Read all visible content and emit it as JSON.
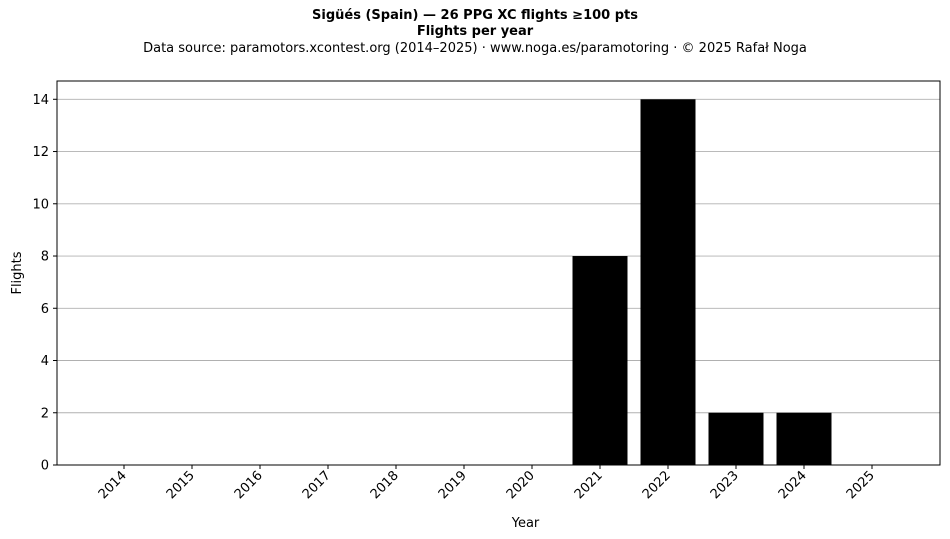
{
  "figure": {
    "title": "Sigüés (Spain)  —  26 PPG XC flights ≥100 pts",
    "subtitle": "Flights per year",
    "source_line": "Data source: paramotors.xcontest.org (2014–2025)  ·  www.noga.es/paramotoring  ·  © 2025 Rafał Noga"
  },
  "chart_data": {
    "type": "bar",
    "title": "Flights per year",
    "xlabel": "Year",
    "ylabel": "Flights",
    "categories": [
      "2014",
      "2015",
      "2016",
      "2017",
      "2018",
      "2019",
      "2020",
      "2021",
      "2022",
      "2023",
      "2024",
      "2025"
    ],
    "values": [
      0,
      0,
      0,
      0,
      0,
      0,
      0,
      8,
      14,
      2,
      2,
      0
    ],
    "ylim": [
      0,
      14.7
    ],
    "yticks": [
      0,
      2,
      4,
      6,
      8,
      10,
      12,
      14
    ],
    "grid": "y",
    "bar_color": "#000000",
    "grid_color": "#b0b0b0"
  }
}
